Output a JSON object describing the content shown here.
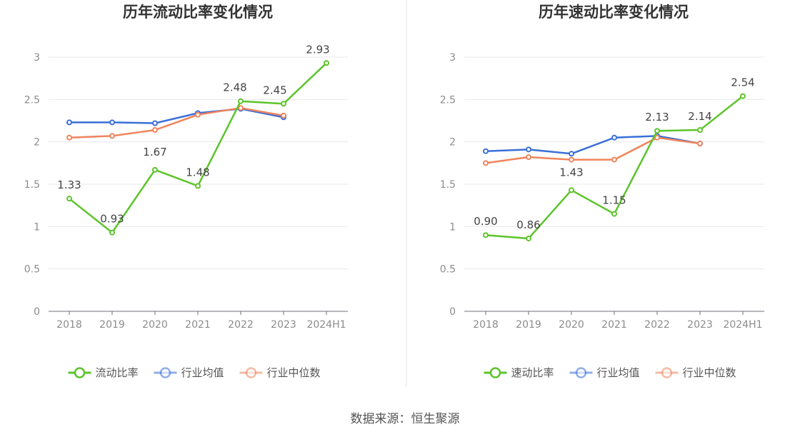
{
  "footer": {
    "source": "数据来源：恒生聚源"
  },
  "chart_data": [
    {
      "type": "line",
      "title": "历年流动比率变化情况",
      "categories": [
        "2018",
        "2019",
        "2020",
        "2021",
        "2022",
        "2023",
        "2024H1"
      ],
      "ylim": [
        0,
        3
      ],
      "yticks": [
        0,
        0.5,
        1,
        1.5,
        2,
        2.5,
        3
      ],
      "ytick_labels": [
        "0",
        "0.5",
        "1",
        "1.5",
        "2",
        "2.5",
        "3"
      ],
      "grid": true,
      "legend_position": "bottom-center",
      "series": [
        {
          "name": "流动比率",
          "color": "#5cc42a",
          "values": [
            1.33,
            0.93,
            1.67,
            1.48,
            2.48,
            2.45,
            2.93
          ],
          "labels": [
            "1.33",
            "0.93",
            "1.67",
            "1.48",
            "2.48",
            "2.45",
            "2.93"
          ]
        },
        {
          "name": "行业均值",
          "color": "#3a6fd8",
          "values": [
            2.23,
            2.23,
            2.22,
            2.34,
            2.39,
            2.29,
            null
          ]
        },
        {
          "name": "行业中位数",
          "color": "#f0845c",
          "values": [
            2.05,
            2.07,
            2.14,
            2.32,
            2.4,
            2.31,
            null
          ]
        }
      ]
    },
    {
      "type": "line",
      "title": "历年速动比率变化情况",
      "categories": [
        "2018",
        "2019",
        "2020",
        "2021",
        "2022",
        "2023",
        "2024H1"
      ],
      "ylim": [
        0,
        3
      ],
      "yticks": [
        0,
        0.5,
        1,
        1.5,
        2,
        2.5,
        3
      ],
      "ytick_labels": [
        "0",
        "0.5",
        "1",
        "1.5",
        "2",
        "2.5",
        "3"
      ],
      "grid": true,
      "legend_position": "bottom-center",
      "series": [
        {
          "name": "速动比率",
          "color": "#5cc42a",
          "values": [
            0.9,
            0.86,
            1.43,
            1.15,
            2.13,
            2.14,
            2.54
          ],
          "labels": [
            "0.90",
            "0.86",
            "1.43",
            "1.15",
            "2.13",
            "2.14",
            "2.54"
          ]
        },
        {
          "name": "行业均值",
          "color": "#3a6fd8",
          "values": [
            1.89,
            1.91,
            1.86,
            2.05,
            2.07,
            1.98,
            null
          ]
        },
        {
          "name": "行业中位数",
          "color": "#f0845c",
          "values": [
            1.75,
            1.82,
            1.79,
            1.79,
            2.05,
            1.98,
            null
          ]
        }
      ]
    }
  ]
}
